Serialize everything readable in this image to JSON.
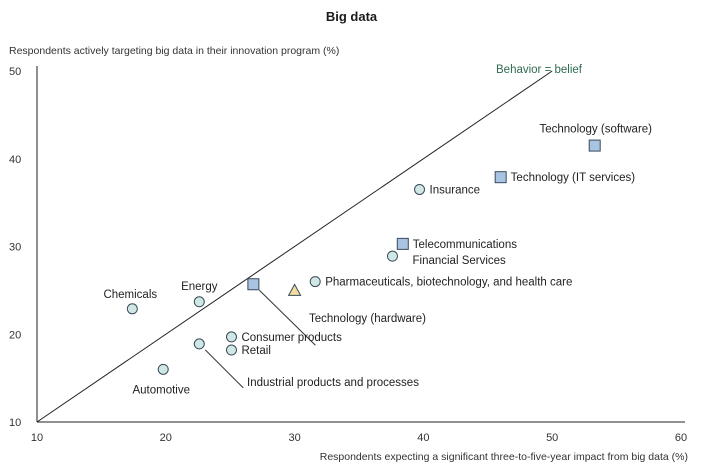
{
  "chart_data": {
    "type": "scatter",
    "title": "Big data",
    "xlabel": "Respondents expecting a significant three-to-five-year impact from big data (%)",
    "ylabel": "Respondents actively targeting big data in their innovation program (%)",
    "xlim": [
      10,
      60
    ],
    "ylim": [
      10,
      50
    ],
    "x_ticks": [
      "10",
      "20",
      "30",
      "40",
      "50",
      "60"
    ],
    "y_ticks": [
      "10",
      "20",
      "30",
      "40",
      "50"
    ],
    "reference_line": {
      "label": "Behavior = belief",
      "from": [
        10,
        10
      ],
      "to": [
        50,
        50
      ],
      "label_color": "#2e6b4f"
    },
    "colors": {
      "circle_fill": "#cfe8e4",
      "square_fill": "#a9c4e2",
      "triangle_fill": "#f3dca0",
      "stroke": "#3a4a5a"
    },
    "points": [
      {
        "label": "Technology (software)",
        "x": 53.3,
        "y": 41.5,
        "shape": "square"
      },
      {
        "label": "Technology (IT services)",
        "x": 46.0,
        "y": 37.9,
        "shape": "square"
      },
      {
        "label": "Insurance",
        "x": 39.7,
        "y": 36.5,
        "shape": "circle"
      },
      {
        "label": "Telecommunications",
        "x": 38.4,
        "y": 30.3,
        "shape": "square"
      },
      {
        "label": "Financial Services",
        "x": 37.6,
        "y": 28.9,
        "shape": "circle"
      },
      {
        "label": "Pharmaceuticals, biotechnology, and health care",
        "x": 31.6,
        "y": 26.0,
        "shape": "circle"
      },
      {
        "label": "",
        "x": 30.0,
        "y": 25.0,
        "shape": "triangle"
      },
      {
        "label": "Technology (hardware)",
        "x": 26.8,
        "y": 25.7,
        "shape": "square"
      },
      {
        "label": "Energy",
        "x": 22.6,
        "y": 23.7,
        "shape": "circle"
      },
      {
        "label": "Chemicals",
        "x": 17.4,
        "y": 22.9,
        "shape": "circle"
      },
      {
        "label": "Consumer products",
        "x": 25.1,
        "y": 19.7,
        "shape": "circle"
      },
      {
        "label": "Retail",
        "x": 25.1,
        "y": 18.2,
        "shape": "circle"
      },
      {
        "label": "Industrial products and processes",
        "x": 22.6,
        "y": 18.9,
        "shape": "circle"
      },
      {
        "label": "Automotive",
        "x": 19.8,
        "y": 16.0,
        "shape": "circle"
      }
    ]
  }
}
